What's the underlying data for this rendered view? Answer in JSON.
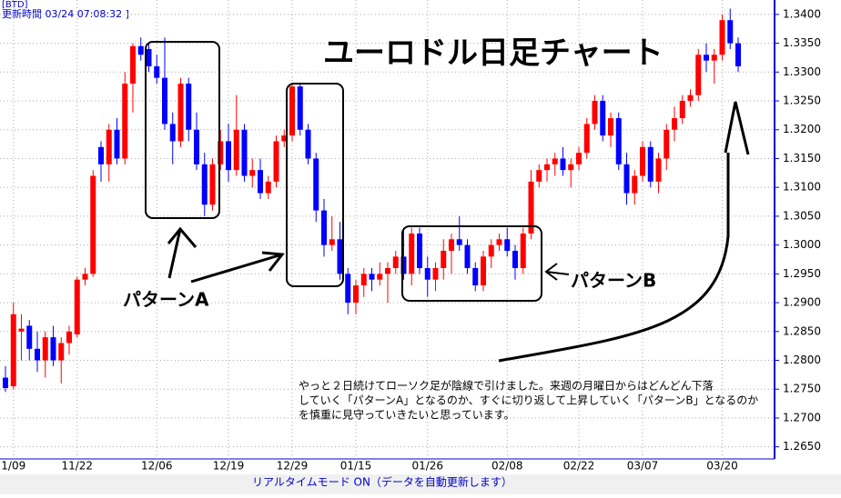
{
  "header": {
    "code": "[BTD]",
    "updated": "更新時間 03/24 07:08:32 ]"
  },
  "chart_data": {
    "type": "candlestick",
    "title": "ユーロドル日足チャート",
    "categories": [
      null,
      "1/09",
      null,
      null,
      null,
      null,
      null,
      null,
      null,
      "11/22",
      null,
      null,
      null,
      null,
      null,
      null,
      null,
      null,
      null,
      "12/06",
      null,
      null,
      null,
      null,
      null,
      null,
      null,
      null,
      "12/19",
      null,
      null,
      null,
      null,
      null,
      null,
      null,
      "12/29",
      null,
      null,
      null,
      null,
      null,
      null,
      null,
      "01/15",
      null,
      null,
      null,
      null,
      null,
      null,
      null,
      null,
      "01/26",
      null,
      null,
      null,
      null,
      null,
      null,
      null,
      null,
      null,
      "02/08",
      null,
      null,
      null,
      null,
      null,
      null,
      null,
      null,
      "02/22",
      null,
      null,
      null,
      null,
      null,
      null,
      null,
      "03/07",
      null,
      null,
      null,
      null,
      null,
      null,
      null,
      null,
      null,
      "03/20",
      null,
      null
    ],
    "open": [
      1.277,
      1.2755,
      1.285,
      1.286,
      1.282,
      1.28,
      1.284,
      1.28,
      1.283,
      1.2845,
      1.294,
      1.295,
      1.317,
      1.314,
      1.32,
      1.315,
      1.328,
      1.3345,
      1.334,
      1.331,
      1.329,
      1.321,
      1.318,
      1.328,
      1.32,
      1.314,
      1.307,
      1.314,
      1.318,
      1.313,
      1.32,
      1.312,
      1.313,
      1.309,
      1.311,
      1.318,
      1.319,
      1.3275,
      1.32,
      1.315,
      1.306,
      1.3,
      1.301,
      1.295,
      1.29,
      1.293,
      1.295,
      1.294,
      1.295,
      1.296,
      1.298,
      1.295,
      1.302,
      1.296,
      1.294,
      1.296,
      1.299,
      1.301,
      1.3,
      1.296,
      1.293,
      1.298,
      1.3,
      1.301,
      1.299,
      1.296,
      1.302,
      1.311,
      1.313,
      1.314,
      1.315,
      1.313,
      1.314,
      1.316,
      1.321,
      1.325,
      1.319,
      1.322,
      1.314,
      1.309,
      1.312,
      1.317,
      1.311,
      1.315,
      1.32,
      1.322,
      1.325,
      1.326,
      1.333,
      1.332,
      1.333,
      1.339,
      1.335
    ],
    "high": [
      1.279,
      1.29,
      1.288,
      1.287,
      1.285,
      1.285,
      1.286,
      1.284,
      1.286,
      1.2945,
      1.296,
      1.313,
      1.318,
      1.321,
      1.322,
      1.33,
      1.335,
      1.336,
      1.335,
      1.333,
      1.336,
      1.323,
      1.329,
      1.329,
      1.323,
      1.316,
      1.315,
      1.32,
      1.321,
      1.326,
      1.321,
      1.315,
      1.315,
      1.312,
      1.319,
      1.32,
      1.328,
      1.328,
      1.321,
      1.316,
      1.308,
      1.305,
      1.304,
      1.296,
      1.294,
      1.296,
      1.296,
      1.297,
      1.297,
      1.299,
      1.303,
      1.303,
      1.303,
      1.298,
      1.297,
      1.301,
      1.302,
      1.305,
      1.301,
      1.297,
      1.299,
      1.301,
      1.302,
      1.303,
      1.3,
      1.303,
      1.313,
      1.314,
      1.315,
      1.316,
      1.317,
      1.315,
      1.317,
      1.322,
      1.326,
      1.326,
      1.323,
      1.323,
      1.316,
      1.313,
      1.318,
      1.318,
      1.316,
      1.321,
      1.324,
      1.326,
      1.327,
      1.334,
      1.335,
      1.334,
      1.34,
      1.341,
      1.336
    ],
    "low": [
      1.2745,
      1.275,
      1.28,
      1.28,
      1.278,
      1.277,
      1.279,
      1.276,
      1.281,
      1.284,
      1.293,
      1.2945,
      1.311,
      1.311,
      1.314,
      1.314,
      1.323,
      1.332,
      1.33,
      1.328,
      1.32,
      1.314,
      1.317,
      1.318,
      1.313,
      1.305,
      1.306,
      1.313,
      1.311,
      1.312,
      1.311,
      1.31,
      1.308,
      1.308,
      1.31,
      1.317,
      1.318,
      1.319,
      1.314,
      1.304,
      1.298,
      1.299,
      1.294,
      1.288,
      1.288,
      1.291,
      1.292,
      1.293,
      1.29,
      1.295,
      1.294,
      1.293,
      1.295,
      1.291,
      1.292,
      1.294,
      1.295,
      1.299,
      1.295,
      1.292,
      1.292,
      1.296,
      1.299,
      1.298,
      1.294,
      1.295,
      1.301,
      1.31,
      1.311,
      1.312,
      1.312,
      1.31,
      1.313,
      1.315,
      1.32,
      1.318,
      1.317,
      1.313,
      1.307,
      1.307,
      1.311,
      1.31,
      1.309,
      1.313,
      1.318,
      1.321,
      1.324,
      1.325,
      1.33,
      1.328,
      1.332,
      1.334,
      1.33
    ],
    "close": [
      1.2752,
      1.288,
      1.2855,
      1.282,
      1.28,
      1.284,
      1.28,
      1.283,
      1.285,
      1.294,
      1.295,
      1.312,
      1.314,
      1.32,
      1.315,
      1.328,
      1.3345,
      1.333,
      1.331,
      1.329,
      1.321,
      1.318,
      1.328,
      1.32,
      1.314,
      1.307,
      1.314,
      1.318,
      1.313,
      1.32,
      1.312,
      1.313,
      1.309,
      1.311,
      1.318,
      1.319,
      1.3275,
      1.32,
      1.315,
      1.306,
      1.3,
      1.301,
      1.295,
      1.29,
      1.293,
      1.295,
      1.294,
      1.295,
      1.296,
      1.298,
      1.295,
      1.302,
      1.296,
      1.294,
      1.296,
      1.299,
      1.301,
      1.3,
      1.296,
      1.293,
      1.298,
      1.3,
      1.301,
      1.299,
      1.296,
      1.302,
      1.311,
      1.313,
      1.314,
      1.315,
      1.313,
      1.314,
      1.316,
      1.321,
      1.325,
      1.319,
      1.322,
      1.314,
      1.309,
      1.312,
      1.317,
      1.311,
      1.315,
      1.32,
      1.322,
      1.325,
      1.326,
      1.333,
      1.332,
      1.333,
      1.339,
      1.335,
      1.331
    ],
    "up_color": "#ff0000",
    "down_color": "#0000ff",
    "ylim": [
      1.2629,
      1.3425
    ],
    "yticks": [
      {
        "value": 1.34,
        "label": "1.3400"
      },
      {
        "value": 1.335,
        "label": "1.3350"
      },
      {
        "value": 1.33,
        "label": "1.3300"
      },
      {
        "value": 1.325,
        "label": "1.3250"
      },
      {
        "value": 1.32,
        "label": "1.3200"
      },
      {
        "value": 1.315,
        "label": "1.3150"
      },
      {
        "value": 1.31,
        "label": "1.3100"
      },
      {
        "value": 1.305,
        "label": "1.3050"
      },
      {
        "value": 1.3,
        "label": "1.3000"
      },
      {
        "value": 1.295,
        "label": "1.2950"
      },
      {
        "value": 1.29,
        "label": "1.2900"
      },
      {
        "value": 1.285,
        "label": "1.2850"
      },
      {
        "value": 1.28,
        "label": "1.2800"
      },
      {
        "value": 1.275,
        "label": "1.2750"
      },
      {
        "value": 1.27,
        "label": "1.2700"
      },
      {
        "value": 1.265,
        "label": "1.2650"
      }
    ],
    "grid": true,
    "annotations": {
      "pattern_a": "パターンA",
      "pattern_b": "パターンB",
      "note": [
        "やっと２日続けてローソク足が陰線で引けました。来週の月曜日からはどんどん下落",
        "していく「パターンA」となるのか、すぐに切り返して上昇していく「パターンB」となるのか",
        "を慎重に見守っていきたいと思っています。"
      ]
    }
  },
  "status_bar": "リアルタイムモード ON（データを自動更新します）"
}
